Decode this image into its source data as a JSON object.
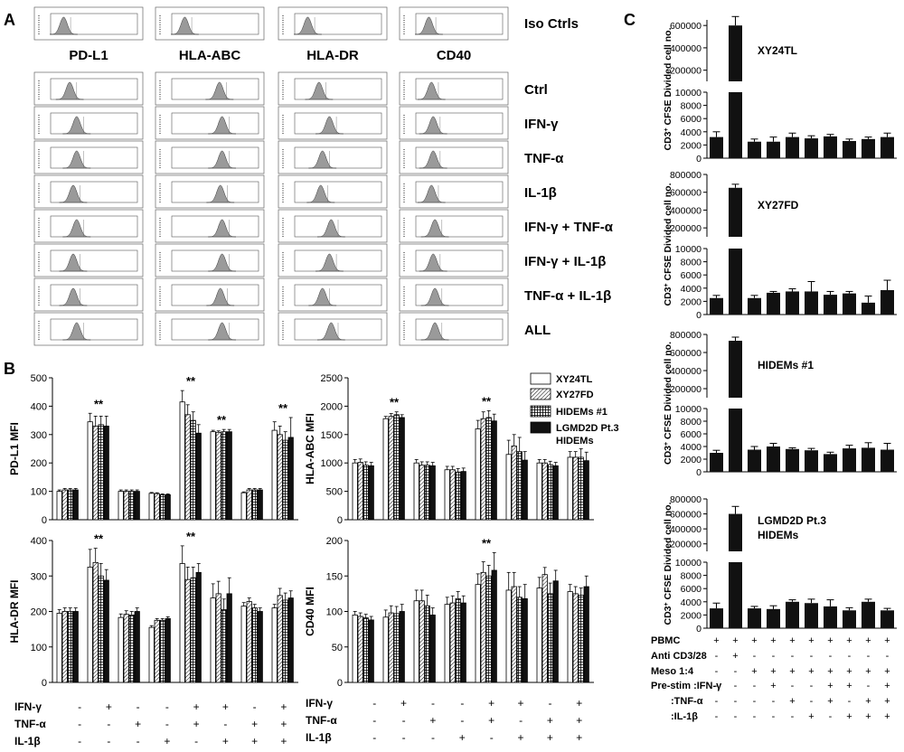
{
  "panel_labels": [
    "A",
    "B",
    "C"
  ],
  "panel_a": {
    "header_markers": [
      "PD-L1",
      "HLA-ABC",
      "HLA-DR",
      "CD40"
    ],
    "iso_label": "Iso Ctrls",
    "condition_labels": [
      "Ctrl",
      "IFN-γ",
      "TNF-α",
      "IL-1β",
      "IFN-γ + TNF-α",
      "IFN-γ + IL-1β",
      "TNF-α + IL-1β",
      "ALL"
    ]
  },
  "panel_b": {
    "legend": [
      "XY24TL",
      "XY27FD",
      "HIDEMs #1",
      "LGMD2D Pt.3",
      "HIDEMs"
    ],
    "treatment_labels": [
      "IFN-γ",
      "TNF-α",
      "IL-1β"
    ],
    "treatment_matrix": [
      [
        "-",
        "+",
        "-",
        "-",
        "+",
        "+",
        "-",
        "+"
      ],
      [
        "-",
        "-",
        "+",
        "-",
        "+",
        "-",
        "+",
        "+"
      ],
      [
        "-",
        "-",
        "-",
        "+",
        "-",
        "+",
        "+",
        "+"
      ]
    ],
    "significance": "**"
  },
  "panel_c": {
    "ylabel_main": "CD3",
    "ylabel_sup": "+",
    "ylabel_rest": " CFSE Divided cell no.",
    "row_labels": [
      "PBMC",
      "Anti CD3/28",
      "Meso 1:4",
      "Pre-stim :IFN-γ",
      ":TNF-α",
      ":IL-1β"
    ],
    "row_matrix": [
      [
        "+",
        "+",
        "+",
        "+",
        "+",
        "+",
        "+",
        "+",
        "+",
        "+"
      ],
      [
        "-",
        "+",
        "-",
        "-",
        "-",
        "-",
        "-",
        "-",
        "-",
        "-"
      ],
      [
        "-",
        "-",
        "+",
        "+",
        "+",
        "+",
        "+",
        "+",
        "+",
        "+"
      ],
      [
        "-",
        "-",
        "-",
        "+",
        "-",
        "-",
        "+",
        "+",
        "-",
        "+"
      ],
      [
        "-",
        "-",
        "-",
        "-",
        "+",
        "-",
        "+",
        "-",
        "+",
        "+"
      ],
      [
        "-",
        "-",
        "-",
        "-",
        "-",
        "+",
        "-",
        "+",
        "+",
        "+"
      ]
    ]
  },
  "chart_data": [
    {
      "panel": "B",
      "type": "bar",
      "ylabel": "PD-L1 MFI",
      "ylim": [
        0,
        500
      ],
      "yticks": [
        "0",
        "100",
        "200",
        "300",
        "400",
        "500"
      ],
      "series": [
        {
          "name": "XY24TL",
          "values": [
            100,
            345,
            100,
            93,
            415,
            310,
            95,
            315
          ],
          "errors": [
            5,
            30,
            5,
            3,
            40,
            5,
            3,
            30
          ]
        },
        {
          "name": "XY27FD",
          "values": [
            105,
            330,
            100,
            92,
            370,
            308,
            105,
            300
          ],
          "errors": [
            5,
            35,
            5,
            3,
            35,
            5,
            5,
            30
          ]
        },
        {
          "name": "HIDEMs #1",
          "values": [
            105,
            335,
            100,
            88,
            350,
            310,
            105,
            280
          ],
          "errors": [
            5,
            30,
            5,
            3,
            30,
            8,
            5,
            30
          ]
        },
        {
          "name": "LGMD2D Pt.3 HIDEMs",
          "values": [
            105,
            330,
            100,
            88,
            305,
            310,
            105,
            290
          ],
          "errors": [
            5,
            35,
            5,
            3,
            30,
            8,
            5,
            70
          ]
        }
      ],
      "significant_groups": [
        1,
        4,
        5,
        7
      ]
    },
    {
      "panel": "B",
      "type": "bar",
      "ylabel": "HLA-ABC MFI",
      "ylim": [
        0,
        2500
      ],
      "yticks": [
        "0",
        "500",
        "1000",
        "1500",
        "2000",
        "2500"
      ],
      "series": [
        {
          "name": "XY24TL",
          "values": [
            1000,
            1780,
            1000,
            880,
            1600,
            1150,
            1000,
            1100
          ],
          "errors": [
            60,
            40,
            60,
            60,
            150,
            250,
            60,
            100
          ]
        },
        {
          "name": "XY27FD",
          "values": [
            1010,
            1820,
            960,
            880,
            1780,
            1300,
            1000,
            1100
          ],
          "errors": [
            60,
            50,
            60,
            60,
            120,
            200,
            60,
            100
          ]
        },
        {
          "name": "HIDEMs #1",
          "values": [
            960,
            1850,
            960,
            840,
            1800,
            1200,
            970,
            1100
          ],
          "errors": [
            60,
            50,
            60,
            60,
            120,
            250,
            60,
            150
          ]
        },
        {
          "name": "LGMD2D Pt.3 HIDEMs",
          "values": [
            950,
            1800,
            950,
            850,
            1740,
            1050,
            950,
            1040
          ],
          "errors": [
            60,
            50,
            60,
            60,
            120,
            150,
            60,
            150
          ]
        }
      ],
      "significant_groups": [
        1,
        4
      ]
    },
    {
      "panel": "B",
      "type": "bar",
      "ylabel": "HLA-DR MFI",
      "ylim": [
        0,
        400
      ],
      "yticks": [
        "0",
        "100",
        "200",
        "300",
        "400"
      ],
      "series": [
        {
          "name": "XY24TL",
          "values": [
            195,
            325,
            183,
            155,
            335,
            238,
            215,
            210
          ],
          "errors": [
            10,
            50,
            10,
            5,
            50,
            40,
            10,
            10
          ]
        },
        {
          "name": "XY27FD",
          "values": [
            200,
            338,
            192,
            175,
            290,
            250,
            228,
            245
          ],
          "errors": [
            10,
            40,
            10,
            5,
            35,
            35,
            10,
            20
          ]
        },
        {
          "name": "HIDEMs #1",
          "values": [
            200,
            300,
            190,
            175,
            295,
            205,
            210,
            232
          ],
          "errors": [
            10,
            35,
            10,
            5,
            30,
            30,
            10,
            20
          ]
        },
        {
          "name": "LGMD2D Pt.3 HIDEMs",
          "values": [
            200,
            288,
            200,
            180,
            310,
            250,
            200,
            238
          ],
          "errors": [
            10,
            30,
            10,
            5,
            25,
            45,
            10,
            20
          ]
        }
      ],
      "significant_groups": [
        1,
        4
      ]
    },
    {
      "panel": "B",
      "type": "bar",
      "ylabel": "CD40 MFI",
      "ylim": [
        0,
        200
      ],
      "yticks": [
        "0",
        "50",
        "100",
        "150",
        "200"
      ],
      "series": [
        {
          "name": "XY24TL",
          "values": [
            95,
            92,
            115,
            110,
            138,
            130,
            133,
            128
          ],
          "errors": [
            5,
            10,
            15,
            10,
            15,
            25,
            15,
            10
          ]
        },
        {
          "name": "XY27FD",
          "values": [
            93,
            98,
            115,
            112,
            155,
            135,
            152,
            125
          ],
          "errors": [
            5,
            10,
            15,
            10,
            15,
            20,
            10,
            10
          ]
        },
        {
          "name": "HIDEMs #1",
          "values": [
            91,
            97,
            108,
            118,
            150,
            120,
            125,
            123
          ],
          "errors": [
            5,
            10,
            15,
            10,
            15,
            15,
            15,
            10
          ]
        },
        {
          "name": "LGMD2D Pt.3 HIDEMs",
          "values": [
            88,
            100,
            95,
            112,
            158,
            118,
            143,
            135
          ],
          "errors": [
            5,
            10,
            10,
            10,
            25,
            20,
            15,
            15
          ]
        }
      ],
      "significant_groups": [
        4
      ]
    },
    {
      "panel": "C",
      "type": "bar",
      "title": "XY24TL",
      "yticks_lower": [
        "0",
        "2000",
        "4000",
        "6000",
        "8000",
        "10000"
      ],
      "yticks_upper": [
        "200000",
        "400000",
        "600000"
      ],
      "values": [
        3200,
        600000,
        2500,
        2500,
        3200,
        3000,
        3300,
        2600,
        2900,
        3200
      ],
      "errors": [
        800,
        80000,
        400,
        700,
        600,
        400,
        300,
        300,
        300,
        600
      ]
    },
    {
      "panel": "C",
      "type": "bar",
      "title": "XY27FD",
      "yticks_lower": [
        "0",
        "2000",
        "4000",
        "6000",
        "8000",
        "10000"
      ],
      "yticks_upper": [
        "200000",
        "400000",
        "600000",
        "800000"
      ],
      "values": [
        2500,
        650000,
        2500,
        3300,
        3500,
        3500,
        3000,
        3200,
        1800,
        3700
      ],
      "errors": [
        400,
        40000,
        400,
        200,
        400,
        1500,
        500,
        300,
        1000,
        1500
      ]
    },
    {
      "panel": "C",
      "type": "bar",
      "title": "HIDEMs #1",
      "yticks_lower": [
        "0",
        "2000",
        "4000",
        "6000",
        "8000",
        "10000"
      ],
      "yticks_upper": [
        "200000",
        "400000",
        "600000",
        "800000"
      ],
      "values": [
        3000,
        730000,
        3500,
        4000,
        3600,
        3400,
        2800,
        3700,
        3800,
        3500
      ],
      "errors": [
        400,
        40000,
        500,
        500,
        200,
        300,
        300,
        500,
        800,
        1000
      ]
    },
    {
      "panel": "C",
      "type": "bar",
      "title": "LGMD2D Pt.3 HIDEMs",
      "title_lines": [
        "LGMD2D Pt.3",
        "HIDEMs"
      ],
      "yticks_lower": [
        "0",
        "2000",
        "4000",
        "6000",
        "8000",
        "10000"
      ],
      "yticks_upper": [
        "200000",
        "400000",
        "600000",
        "800000"
      ],
      "values": [
        3000,
        600000,
        3000,
        2900,
        4000,
        3800,
        3300,
        2700,
        4000,
        2700
      ],
      "errors": [
        800,
        100000,
        300,
        500,
        300,
        600,
        1000,
        400,
        400,
        300
      ]
    }
  ]
}
